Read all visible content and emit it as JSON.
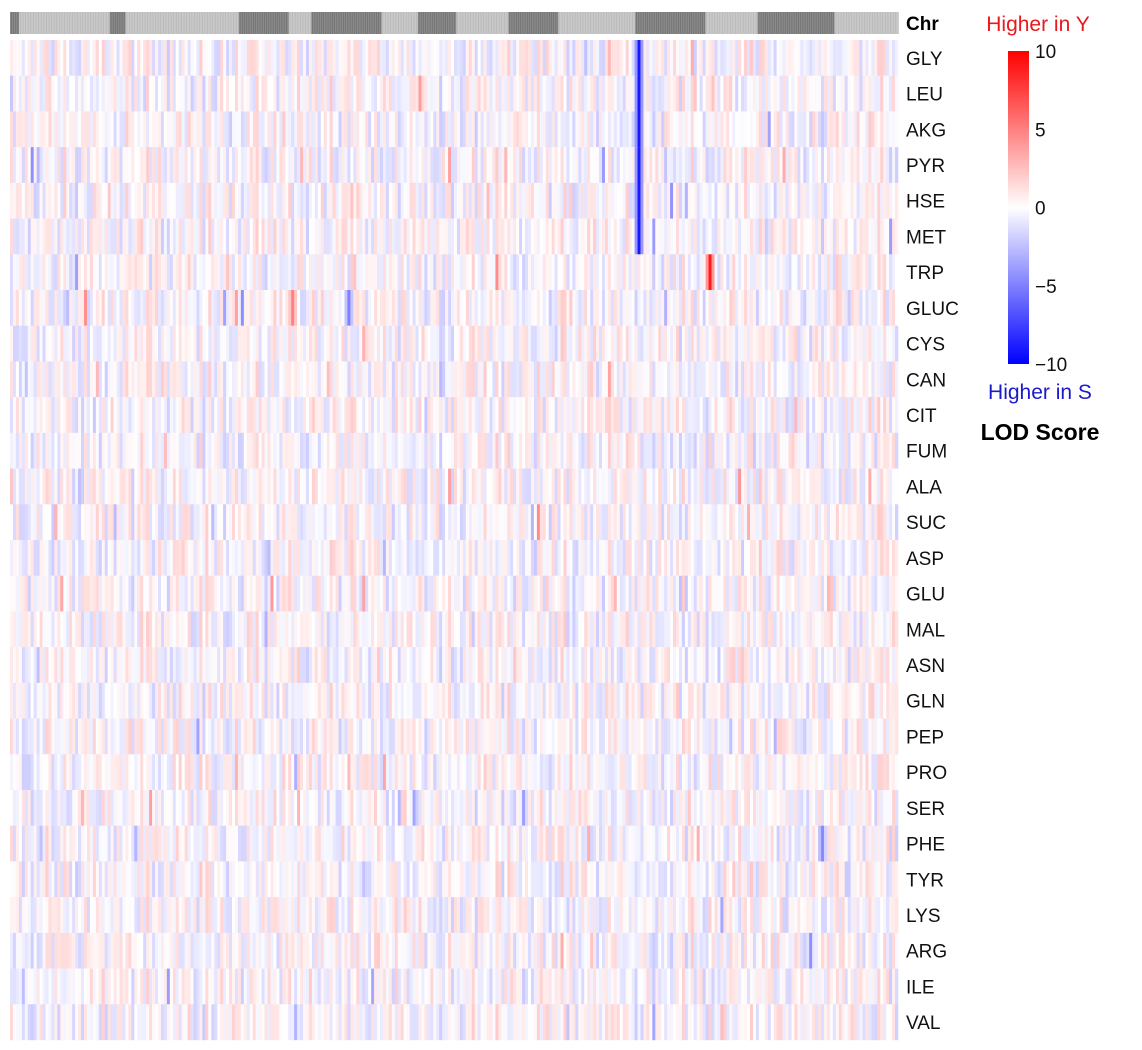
{
  "chart_data": {
    "type": "heatmap",
    "title": "",
    "column_annotation_label": "Chr",
    "chromosome_band_pattern": [
      "dark",
      "light",
      "dark",
      "light",
      "dark",
      "light",
      "dark",
      "light",
      "dark",
      "light",
      "dark",
      "light",
      "dark",
      "light",
      "dark",
      "light"
    ],
    "chromosome_band_relative_lengths": [
      4,
      40,
      7,
      50,
      22,
      10,
      31,
      16,
      17,
      23,
      22,
      34,
      31,
      23,
      34,
      28
    ],
    "rows": [
      "GLY",
      "LEU",
      "AKG",
      "PYR",
      "HSE",
      "MET",
      "TRP",
      "GLUC",
      "CYS",
      "CAN",
      "CIT",
      "FUM",
      "ALA",
      "SUC",
      "ASP",
      "GLU",
      "MAL",
      "ASN",
      "GLN",
      "PEP",
      "PRO",
      "SER",
      "PHE",
      "TYR",
      "LYS",
      "ARG",
      "ILE",
      "VAL"
    ],
    "value_range": [
      -10,
      10
    ],
    "colorscale": {
      "low": "#0000ff",
      "mid": "#ffffff",
      "high": "#ff0000"
    },
    "legend": {
      "title": "LOD Score",
      "top_label": "Higher in Y",
      "bottom_label": "Higher in S",
      "ticks": [
        10,
        5,
        0,
        -5,
        -10
      ],
      "tick_labels": [
        "10",
        "5",
        "0",
        "−5",
        "−10"
      ],
      "placement": "right"
    },
    "colors": {
      "top_label": "#e8191e",
      "bottom_label": "#1a1acc",
      "band_dark": "#8a8a8a",
      "band_light": "#c8c8c8"
    },
    "notable_signals": [
      {
        "rows": [
          "GLY",
          "LEU",
          "AKG",
          "PYR",
          "HSE",
          "MET"
        ],
        "column_fraction": 0.708,
        "value": -9
      },
      {
        "rows": [
          "TRP"
        ],
        "column_fraction": 0.785,
        "value": 9
      },
      {
        "rows": [
          "GLUC"
        ],
        "column_fraction": 0.318,
        "value": 5
      },
      {
        "rows": [
          "GLUC"
        ],
        "column_fraction": 0.381,
        "value": -5
      }
    ]
  }
}
